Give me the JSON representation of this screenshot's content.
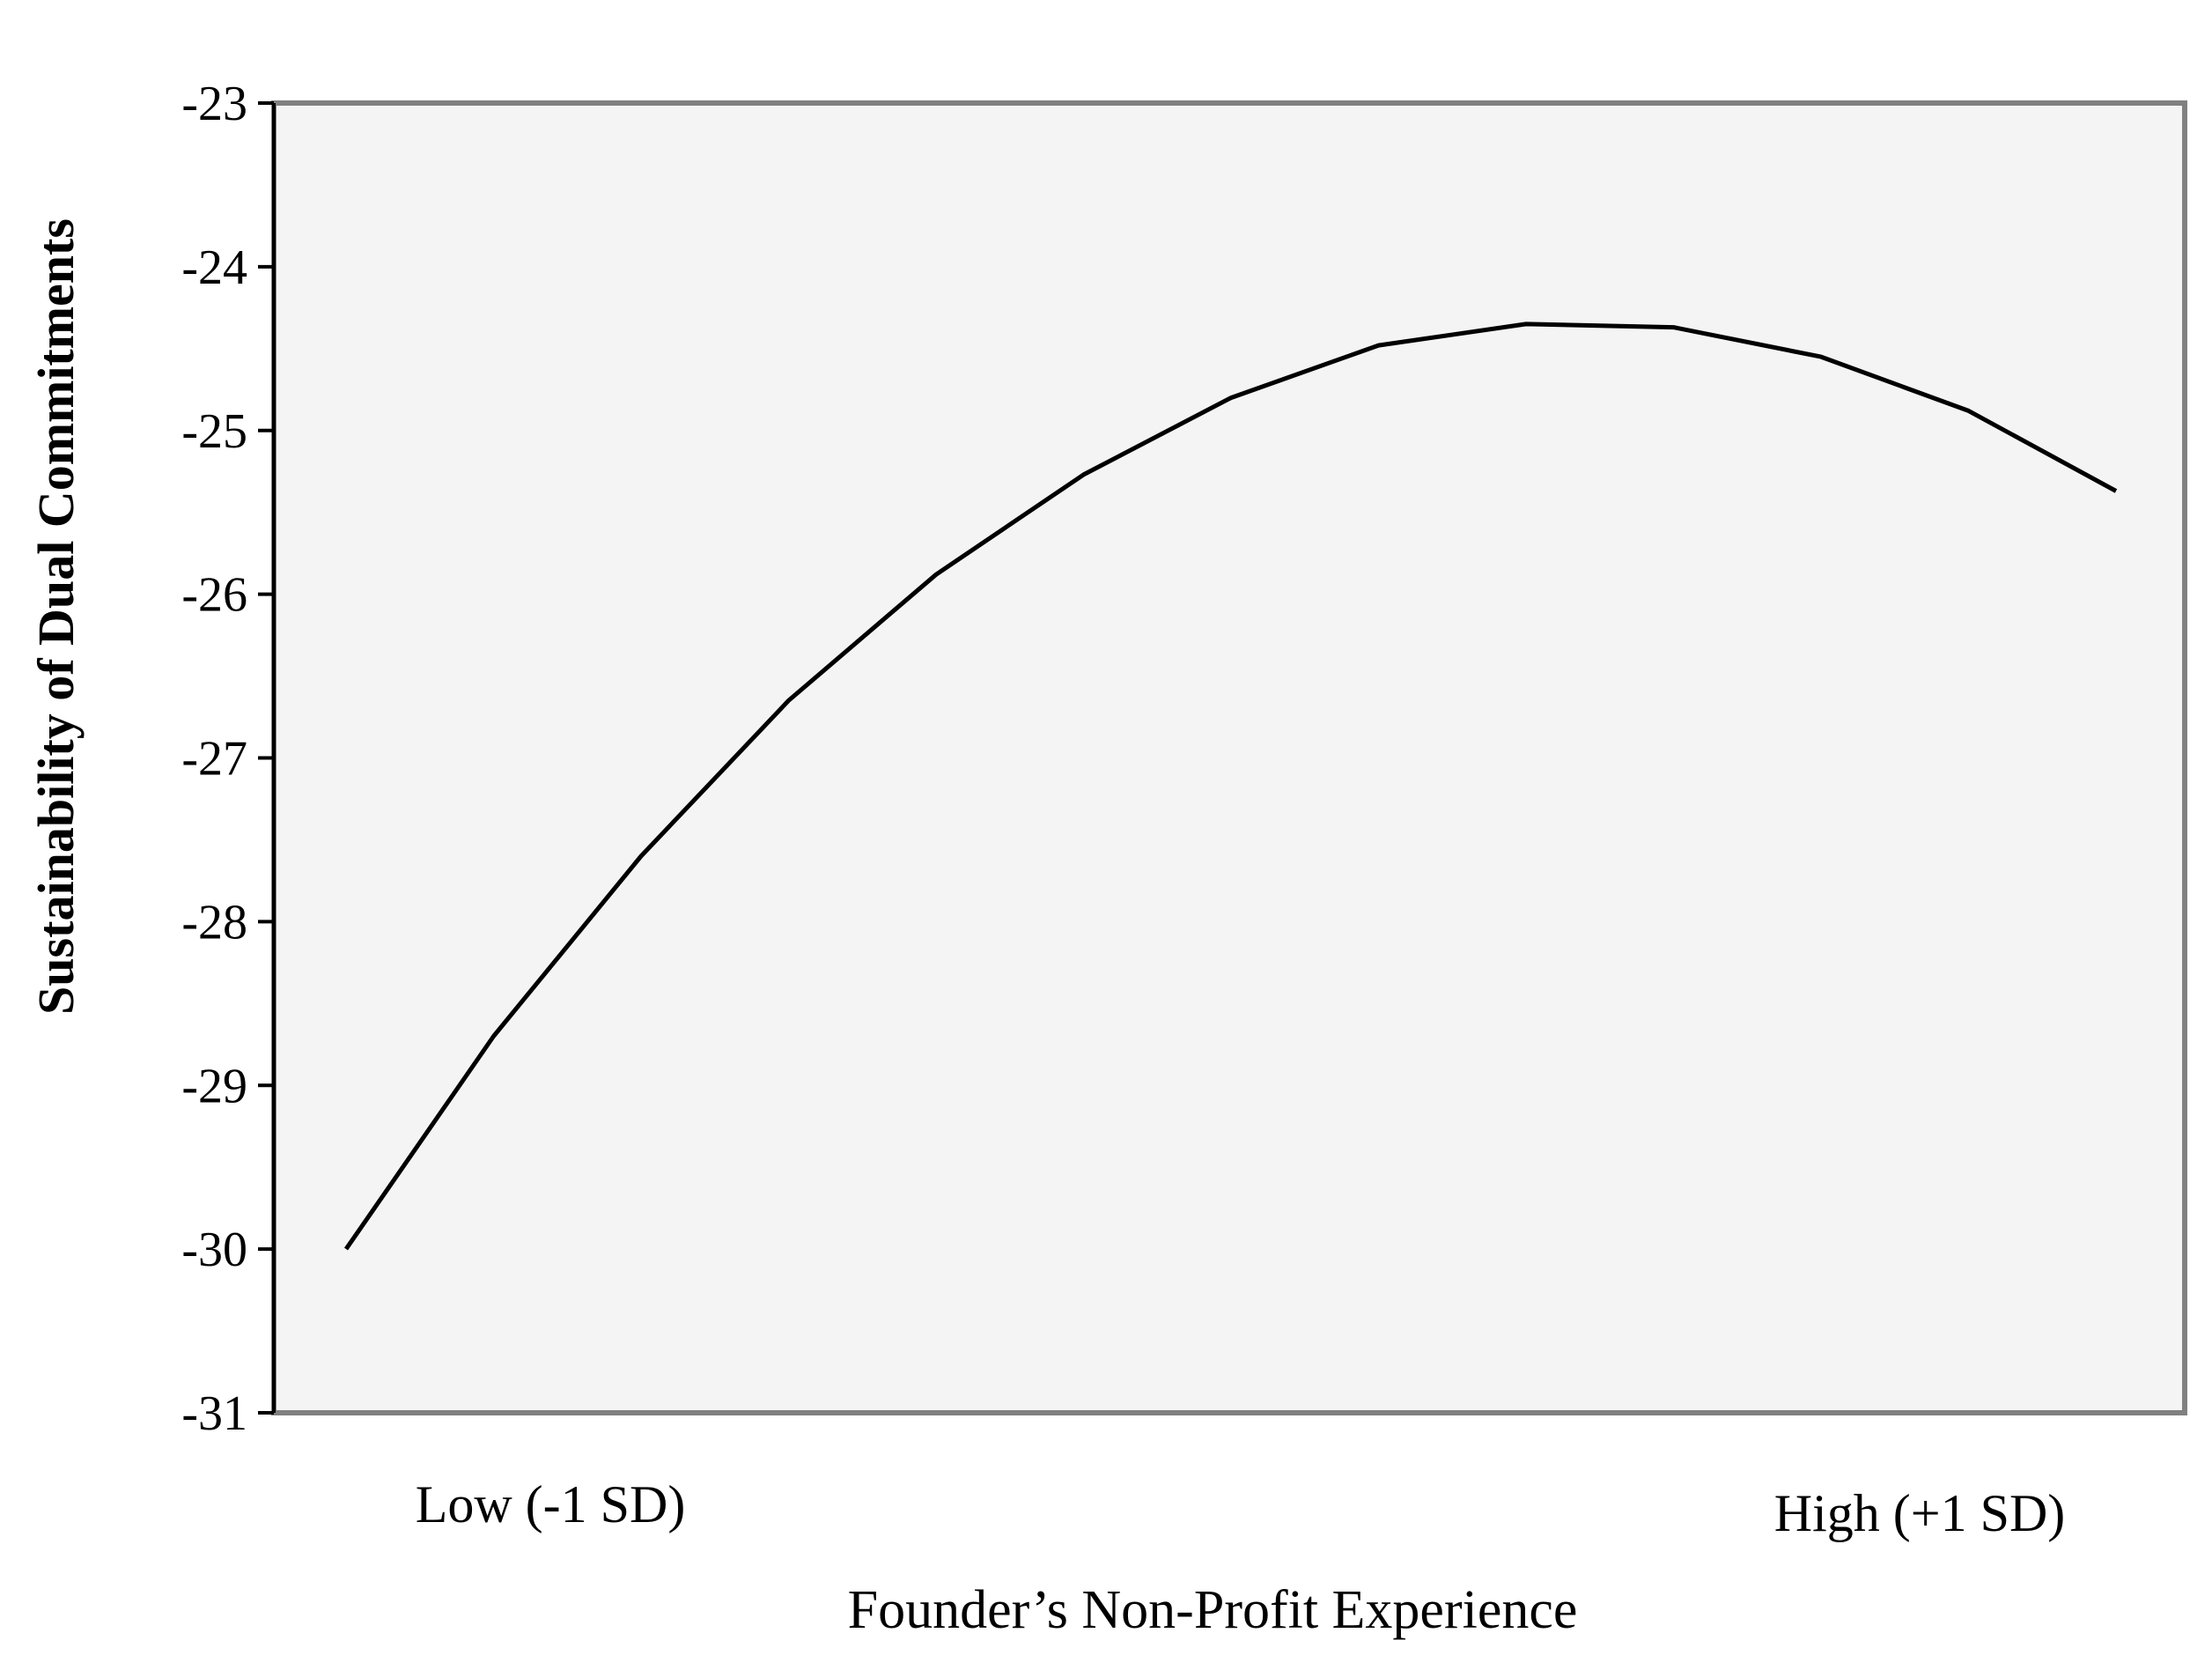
{
  "chart_data": {
    "type": "line",
    "title": "",
    "xlabel": "Founder’s Non-Profit Experience",
    "ylabel": "Sustainability of Dual Commitments",
    "x_categories": [
      "Low (-1 SD)",
      "High (+1 SD)"
    ],
    "x": [
      0,
      1,
      2,
      3,
      4,
      5,
      6,
      7,
      8,
      9,
      10,
      11,
      12
    ],
    "y": [
      -30.0,
      -28.7,
      -27.6,
      -26.65,
      -25.88,
      -25.27,
      -24.8,
      -24.48,
      -24.35,
      -24.37,
      -24.55,
      -24.88,
      -25.37
    ],
    "ylim": [
      -31,
      -23
    ],
    "yticks": [
      "-23",
      "-24",
      "-25",
      "-26",
      "-27",
      "-28",
      "-29",
      "-30",
      "-31"
    ],
    "grid": false,
    "legend": "none",
    "colors": {
      "plot_background": "#f4f4f4",
      "frame": "#808080",
      "line": "#000000"
    }
  }
}
